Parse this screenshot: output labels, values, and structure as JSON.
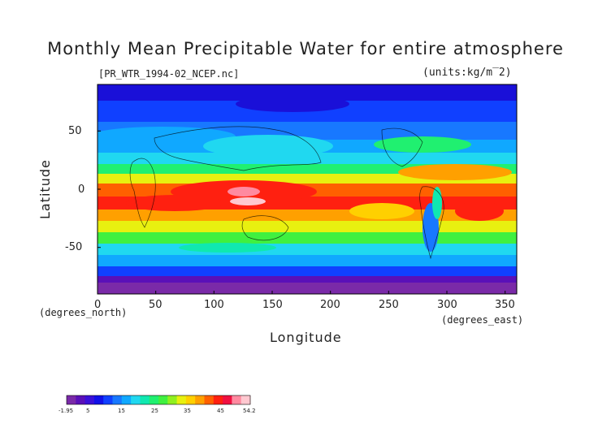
{
  "title": "Monthly Mean Precipitable Water for entire atmosphere",
  "file_label": "[PR_WTR_1994-02_NCEP.nc]",
  "units_label": "(units:kg/m^2)",
  "units_display": "(units:kg/m‾2)",
  "x_axis": {
    "label": "Longitude",
    "unit_label": "(degrees_east)",
    "ticks": [
      "0",
      "50",
      "100",
      "150",
      "200",
      "250",
      "300",
      "350"
    ],
    "range": [
      0,
      360
    ]
  },
  "y_axis": {
    "label": "Latitude",
    "unit_label": "(degrees_north)",
    "ticks": [
      "50",
      "0",
      "-50"
    ],
    "range": [
      -90,
      90
    ]
  },
  "colorbar": {
    "labels": [
      "-1.95",
      "5",
      "15",
      "25",
      "35",
      "45",
      "54.2"
    ],
    "min": -1.95,
    "max": 54.2,
    "colors": [
      "#7a2aa8",
      "#5a10b8",
      "#3a10d8",
      "#1010e8",
      "#1040ff",
      "#1878ff",
      "#10a8ff",
      "#20d8f0",
      "#10e8b0",
      "#20f070",
      "#40f040",
      "#90f020",
      "#e8f010",
      "#ffd000",
      "#ffa000",
      "#ff6000",
      "#ff2010",
      "#f01040",
      "#ff8aa0",
      "#ffc8d0"
    ]
  }
}
